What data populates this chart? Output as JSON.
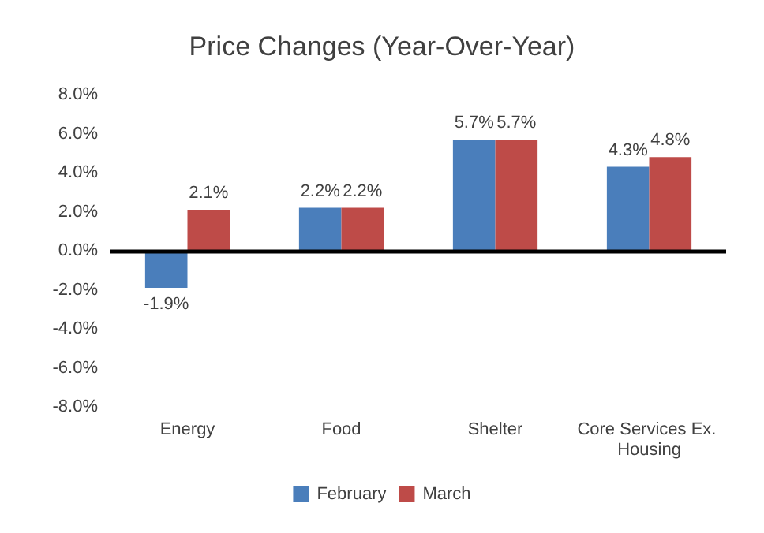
{
  "chart_data": {
    "type": "bar",
    "title": "Price Changes (Year-Over-Year)",
    "categories": [
      "Energy",
      "Food",
      "Shelter",
      "Core Services Ex. Housing"
    ],
    "series": [
      {
        "name": "February",
        "color": "#4a7ebb",
        "values": [
          -1.9,
          2.2,
          5.7,
          4.3
        ],
        "value_labels": [
          "-1.9%",
          "2.2%",
          "5.7%",
          "4.3%"
        ]
      },
      {
        "name": "March",
        "color": "#be4b48",
        "values": [
          2.1,
          2.2,
          5.7,
          4.8
        ],
        "value_labels": [
          "2.1%",
          "2.2%",
          "5.7%",
          "4.8%"
        ]
      }
    ],
    "ylim": [
      -8,
      8
    ],
    "yticks": [
      {
        "value": -8,
        "label": "-8.0%"
      },
      {
        "value": -6,
        "label": "-6.0%"
      },
      {
        "value": -4,
        "label": "-4.0%"
      },
      {
        "value": -2,
        "label": "-2.0%"
      },
      {
        "value": 0,
        "label": "0.0%"
      },
      {
        "value": 2,
        "label": "2.0%"
      },
      {
        "value": 4,
        "label": "4.0%"
      },
      {
        "value": 6,
        "label": "6.0%"
      },
      {
        "value": 8,
        "label": "8.0%"
      }
    ],
    "ref_lines": [
      {
        "axis": "y",
        "value": 0,
        "color": "#000000",
        "line_style": "solid"
      }
    ],
    "grid": false,
    "legend": "bottom"
  }
}
